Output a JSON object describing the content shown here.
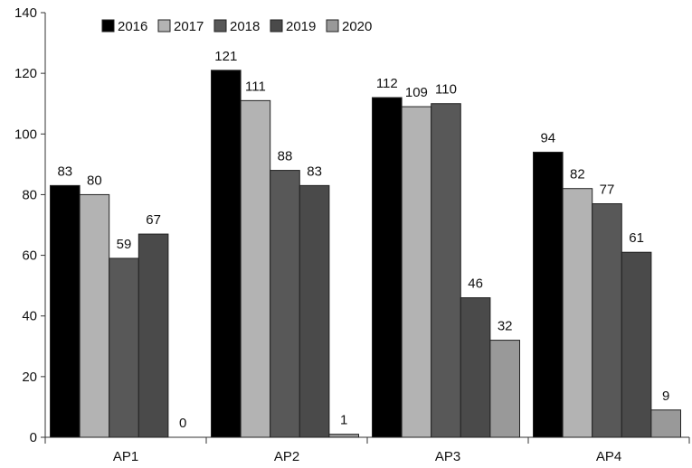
{
  "chart_data": {
    "type": "bar",
    "title": "",
    "xlabel": "",
    "ylabel": "",
    "categories": [
      "AP1",
      "AP2",
      "AP3",
      "AP4"
    ],
    "ylim": [
      0,
      140
    ],
    "yticks": [
      0,
      20,
      40,
      60,
      80,
      100,
      120,
      140
    ],
    "grid": false,
    "legend_position": "top",
    "series": [
      {
        "name": "2016",
        "color": "#000000",
        "values": [
          83,
          121,
          112,
          94
        ]
      },
      {
        "name": "2017",
        "color": "#b3b3b3",
        "values": [
          80,
          111,
          109,
          82
        ]
      },
      {
        "name": "2018",
        "color": "#585858",
        "values": [
          59,
          88,
          110,
          77
        ]
      },
      {
        "name": "2019",
        "color": "#4a4a4a",
        "values": [
          67,
          83,
          46,
          61
        ]
      },
      {
        "name": "2020",
        "color": "#999999",
        "values": [
          0,
          1,
          32,
          9
        ]
      }
    ]
  }
}
